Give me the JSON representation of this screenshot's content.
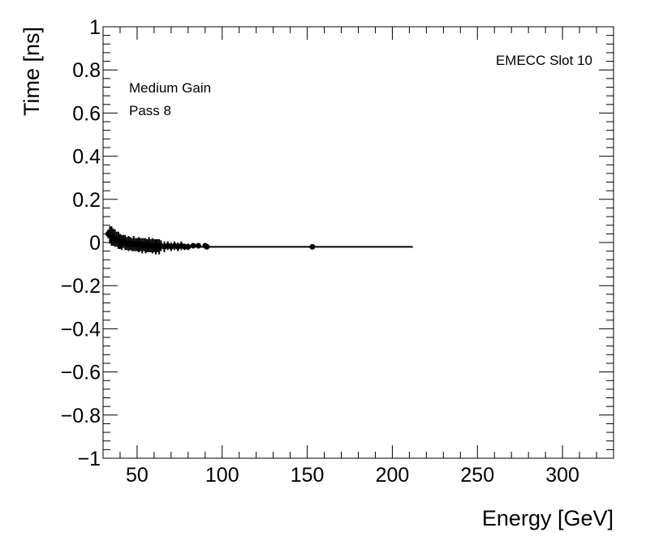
{
  "chart_data": {
    "type": "scatter",
    "title": "",
    "xlabel": "Energy [GeV]",
    "ylabel": "Time [ns]",
    "xlim": [
      30,
      330
    ],
    "ylim": [
      -1,
      1
    ],
    "xticks_major": [
      50,
      100,
      150,
      200,
      250,
      300
    ],
    "yticks_major": [
      -1,
      -0.8,
      -0.6,
      -0.4,
      -0.2,
      0,
      0.2,
      0.4,
      0.6,
      0.8,
      1
    ],
    "x_tick_labels": [
      "50",
      "100",
      "150",
      "200",
      "250",
      "300"
    ],
    "y_tick_labels": [
      "−1",
      "−0.8",
      "−0.6",
      "−0.4",
      "−0.2",
      "0",
      "0.2",
      "0.4",
      "0.6",
      "0.8",
      "1"
    ],
    "annotations": {
      "top_right": "EMECC Slot 10",
      "line1": "Medium Gain",
      "line2": "Pass 8"
    },
    "grid": false,
    "legend": "none",
    "marker_color": "#000000",
    "points": [
      {
        "x": 33,
        "y": 0.04,
        "yerr": 0.02
      },
      {
        "x": 34,
        "y": 0.035,
        "yerr": 0.04
      },
      {
        "x": 35,
        "y": 0.03,
        "yerr": 0.045
      },
      {
        "x": 36,
        "y": 0.025,
        "yerr": 0.04
      },
      {
        "x": 37,
        "y": 0.02,
        "yerr": 0.04
      },
      {
        "x": 38,
        "y": 0.015,
        "yerr": 0.035
      },
      {
        "x": 39,
        "y": 0.01,
        "yerr": 0.04
      },
      {
        "x": 40,
        "y": 0.005,
        "yerr": 0.035
      },
      {
        "x": 41,
        "y": 0.0,
        "yerr": 0.035
      },
      {
        "x": 42,
        "y": 0.005,
        "yerr": 0.03
      },
      {
        "x": 43,
        "y": 0.0,
        "yerr": 0.035
      },
      {
        "x": 44,
        "y": -0.005,
        "yerr": 0.03
      },
      {
        "x": 45,
        "y": -0.005,
        "yerr": 0.035
      },
      {
        "x": 46,
        "y": -0.005,
        "yerr": 0.03
      },
      {
        "x": 47,
        "y": -0.01,
        "yerr": 0.03
      },
      {
        "x": 48,
        "y": -0.005,
        "yerr": 0.035
      },
      {
        "x": 49,
        "y": -0.01,
        "yerr": 0.03
      },
      {
        "x": 50,
        "y": -0.01,
        "yerr": 0.03
      },
      {
        "x": 51,
        "y": -0.01,
        "yerr": 0.035
      },
      {
        "x": 52,
        "y": -0.01,
        "yerr": 0.03
      },
      {
        "x": 53,
        "y": -0.015,
        "yerr": 0.035
      },
      {
        "x": 54,
        "y": -0.01,
        "yerr": 0.03
      },
      {
        "x": 55,
        "y": -0.015,
        "yerr": 0.035
      },
      {
        "x": 56,
        "y": -0.015,
        "yerr": 0.03
      },
      {
        "x": 57,
        "y": -0.01,
        "yerr": 0.035
      },
      {
        "x": 58,
        "y": -0.015,
        "yerr": 0.03
      },
      {
        "x": 59,
        "y": -0.015,
        "yerr": 0.035
      },
      {
        "x": 60,
        "y": -0.015,
        "yerr": 0.03
      },
      {
        "x": 61,
        "y": -0.02,
        "yerr": 0.035
      },
      {
        "x": 62,
        "y": -0.015,
        "yerr": 0.03
      },
      {
        "x": 63,
        "y": -0.02,
        "yerr": 0.035
      },
      {
        "x": 64,
        "y": -0.015,
        "yerr": 0.025
      },
      {
        "x": 66,
        "y": -0.02,
        "yerr": 0.025
      },
      {
        "x": 68,
        "y": -0.015,
        "yerr": 0.02
      },
      {
        "x": 70,
        "y": -0.02,
        "yerr": 0.02
      },
      {
        "x": 72,
        "y": -0.015,
        "yerr": 0.02
      },
      {
        "x": 74,
        "y": -0.02,
        "yerr": 0.02
      },
      {
        "x": 76,
        "y": -0.015,
        "yerr": 0.02
      },
      {
        "x": 78,
        "y": -0.02,
        "yerr": 0.015
      },
      {
        "x": 80,
        "y": -0.02,
        "yerr": 0.015
      },
      {
        "x": 83,
        "y": -0.015,
        "yerr": 0.01
      },
      {
        "x": 86,
        "y": -0.015,
        "yerr": 0.01
      },
      {
        "x": 90,
        "y": -0.015,
        "yerr": 0.01
      },
      {
        "x": 91,
        "y": -0.02,
        "yerr": 0.01
      },
      {
        "x": 153,
        "y": -0.02,
        "yerr": 0.01
      }
    ],
    "line": {
      "x": [
        86,
        212
      ],
      "y": [
        -0.02,
        -0.02
      ]
    }
  }
}
